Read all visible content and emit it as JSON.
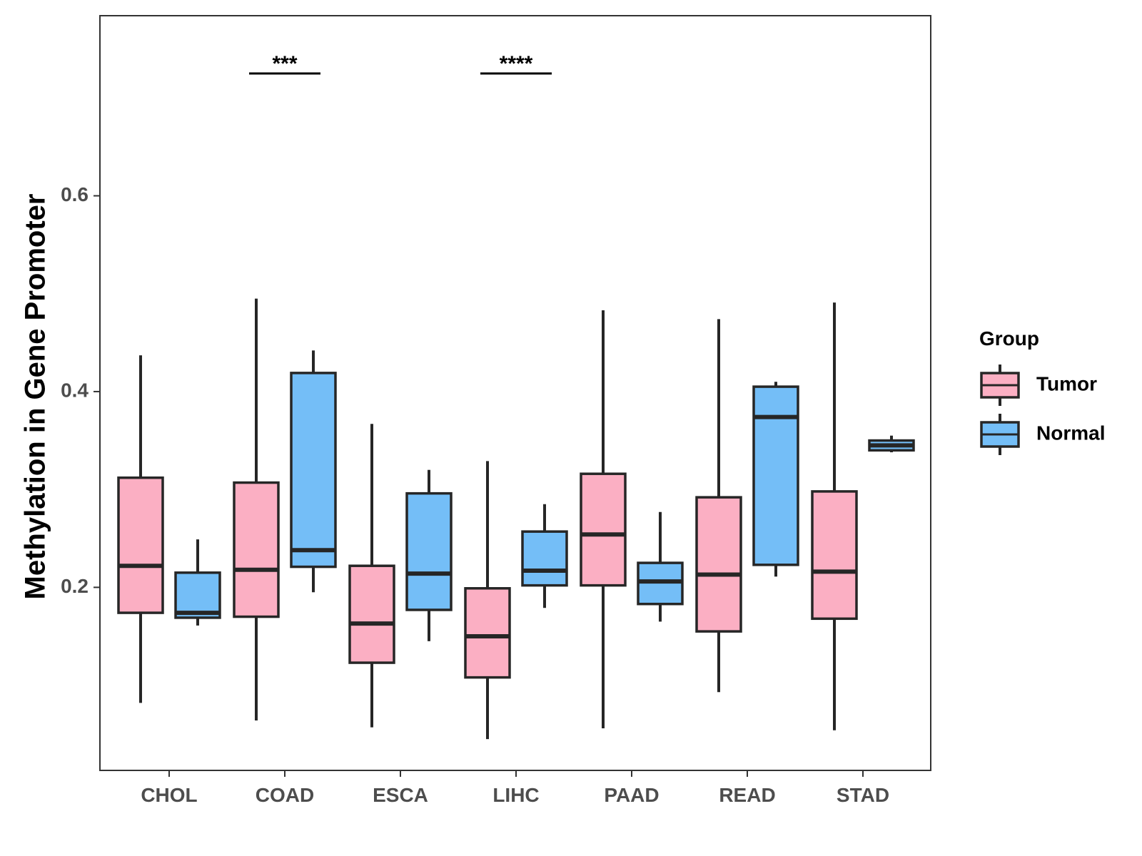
{
  "chart_data": {
    "type": "boxplot",
    "title": "",
    "xlabel": "",
    "ylabel": "Methylation in Gene Promoter",
    "ylim": [
      0.013,
      0.784
    ],
    "yticks": [
      0.2,
      0.4,
      0.6
    ],
    "ytick_labels": [
      "0.2",
      "0.4",
      "0.6"
    ],
    "categories": [
      "CHOL",
      "COAD",
      "ESCA",
      "LIHC",
      "PAAD",
      "READ",
      "STAD"
    ],
    "legend": {
      "title": "Group",
      "placement": "right",
      "entries": [
        {
          "name": "Tumor",
          "color": "#FBAFC3"
        },
        {
          "name": "Normal",
          "color": "#74BEF7"
        }
      ]
    },
    "series": [
      {
        "name": "Tumor",
        "color": "#FBAFC3",
        "boxes": [
          {
            "category": "CHOL",
            "min": 0.082,
            "q1": 0.174,
            "median": 0.222,
            "q3": 0.312,
            "max": 0.437
          },
          {
            "category": "COAD",
            "min": 0.064,
            "q1": 0.17,
            "median": 0.218,
            "q3": 0.307,
            "max": 0.495
          },
          {
            "category": "ESCA",
            "min": 0.057,
            "q1": 0.123,
            "median": 0.163,
            "q3": 0.222,
            "max": 0.367
          },
          {
            "category": "LIHC",
            "min": 0.045,
            "q1": 0.108,
            "median": 0.15,
            "q3": 0.199,
            "max": 0.329
          },
          {
            "category": "PAAD",
            "min": 0.056,
            "q1": 0.202,
            "median": 0.254,
            "q3": 0.316,
            "max": 0.483
          },
          {
            "category": "READ",
            "min": 0.093,
            "q1": 0.155,
            "median": 0.213,
            "q3": 0.292,
            "max": 0.474
          },
          {
            "category": "STAD",
            "min": 0.054,
            "q1": 0.168,
            "median": 0.216,
            "q3": 0.298,
            "max": 0.491
          }
        ]
      },
      {
        "name": "Normal",
        "color": "#74BEF7",
        "boxes": [
          {
            "category": "CHOL",
            "min": 0.161,
            "q1": 0.169,
            "median": 0.174,
            "q3": 0.215,
            "max": 0.249
          },
          {
            "category": "COAD",
            "min": 0.195,
            "q1": 0.221,
            "median": 0.238,
            "q3": 0.419,
            "max": 0.442
          },
          {
            "category": "ESCA",
            "min": 0.145,
            "q1": 0.177,
            "median": 0.214,
            "q3": 0.296,
            "max": 0.32
          },
          {
            "category": "LIHC",
            "min": 0.179,
            "q1": 0.202,
            "median": 0.217,
            "q3": 0.257,
            "max": 0.285
          },
          {
            "category": "PAAD",
            "min": 0.165,
            "q1": 0.183,
            "median": 0.206,
            "q3": 0.225,
            "max": 0.277
          },
          {
            "category": "READ",
            "min": 0.211,
            "q1": 0.223,
            "median": 0.374,
            "q3": 0.405,
            "max": 0.41
          },
          {
            "category": "STAD",
            "min": 0.338,
            "q1": 0.34,
            "median": 0.345,
            "q3": 0.35,
            "max": 0.355
          }
        ]
      }
    ],
    "annotations": [
      {
        "category": "COAD",
        "label": "***",
        "y": 0.725
      },
      {
        "category": "LIHC",
        "label": "****",
        "y": 0.725
      }
    ]
  }
}
